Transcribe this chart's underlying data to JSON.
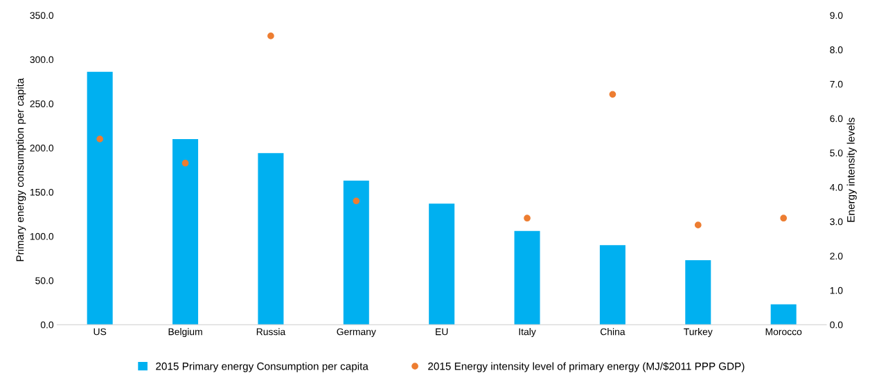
{
  "chart_data": {
    "type": "bar",
    "ylabel": "Primary energy consumption per capita",
    "y2label": "Energy intensity levels",
    "categories": [
      "US",
      "Belgium",
      "Russia",
      "Germany",
      "EU",
      "Italy",
      "China",
      "Turkey",
      "Morocco"
    ],
    "series": [
      {
        "name": "2015 Primary energy Consumption per capita",
        "color": "#00b0f0",
        "values": [
          286,
          210,
          194,
          163,
          137,
          106,
          90,
          73,
          23
        ]
      },
      {
        "name": "2015 Energy intensity level of primary energy (MJ/$2011 PPP GDP)",
        "type": "scatter",
        "axis": "y2",
        "color": "#ed7d31",
        "values": [
          5.4,
          4.7,
          8.4,
          3.6,
          null,
          3.1,
          6.7,
          2.9,
          3.1
        ]
      }
    ],
    "ylim": [
      0,
      350
    ],
    "yticks": [
      {
        "value": 0,
        "label": "0.0"
      },
      {
        "value": 50,
        "label": "50.0"
      },
      {
        "value": 100,
        "label": "100.0"
      },
      {
        "value": 150,
        "label": "150.0"
      },
      {
        "value": 200,
        "label": "200.0"
      },
      {
        "value": 250,
        "label": "250.0"
      },
      {
        "value": 300,
        "label": "300.0"
      },
      {
        "value": 350,
        "label": "350.0"
      }
    ],
    "y2lim": [
      0,
      9
    ],
    "y2ticks": [
      {
        "value": 0,
        "label": "0.0"
      },
      {
        "value": 1,
        "label": "1.0"
      },
      {
        "value": 2,
        "label": "2.0"
      },
      {
        "value": 3,
        "label": "3.0"
      },
      {
        "value": 4,
        "label": "4.0"
      },
      {
        "value": 5,
        "label": "5.0"
      },
      {
        "value": 6,
        "label": "6.0"
      },
      {
        "value": 7,
        "label": "7.0"
      },
      {
        "value": 8,
        "label": "8.0"
      },
      {
        "value": 9,
        "label": "9.0"
      }
    ],
    "legend": "bottom",
    "marker": "circle"
  }
}
